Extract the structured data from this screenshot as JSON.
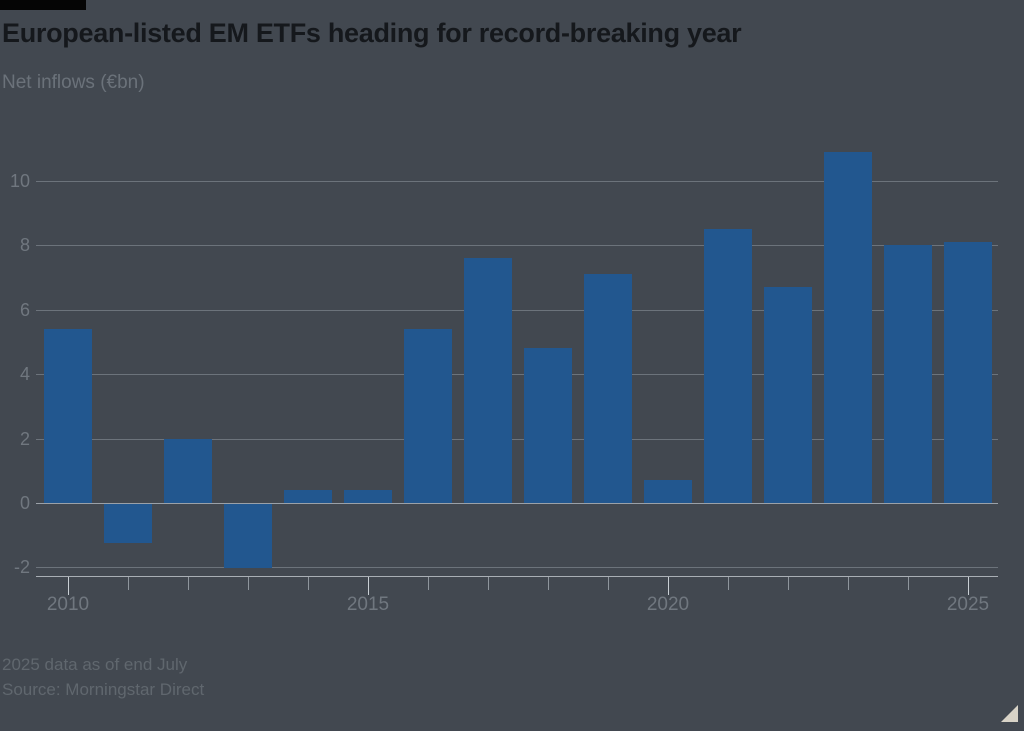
{
  "header": {
    "title": "European-listed EM ETFs heading for record-breaking year",
    "subtitle": "Net inflows (€bn)"
  },
  "footer": {
    "note": "2025 data as of end July",
    "source": "Source: Morningstar Direct"
  },
  "chart_data": {
    "type": "bar",
    "title": "European-listed EM ETFs heading for record-breaking year",
    "subtitle": "Net inflows (€bn)",
    "ylabel": "Net inflows (€bn)",
    "categories": [
      "2010",
      "2011",
      "2012",
      "2013",
      "2014",
      "2015",
      "2016",
      "2017",
      "2018",
      "2019",
      "2020",
      "2021",
      "2022",
      "2023",
      "2024",
      "2025"
    ],
    "values": [
      5.4,
      -1.2,
      2.0,
      -2.0,
      0.4,
      0.4,
      5.4,
      7.6,
      4.8,
      7.1,
      0.7,
      8.5,
      6.7,
      10.9,
      8.0,
      8.1
    ],
    "y_ticks": [
      10,
      8,
      6,
      4,
      2,
      0,
      -2
    ],
    "ylim": [
      -2.3,
      11.7
    ],
    "x_tick_labels": [
      "2010",
      "2015",
      "2020",
      "2025"
    ],
    "grid": "horizontal",
    "legend": "none",
    "bar_color": "#22578f",
    "background_color": "#424850",
    "gridline_color": "#6c737b",
    "axis_text_color": "#70777f"
  }
}
